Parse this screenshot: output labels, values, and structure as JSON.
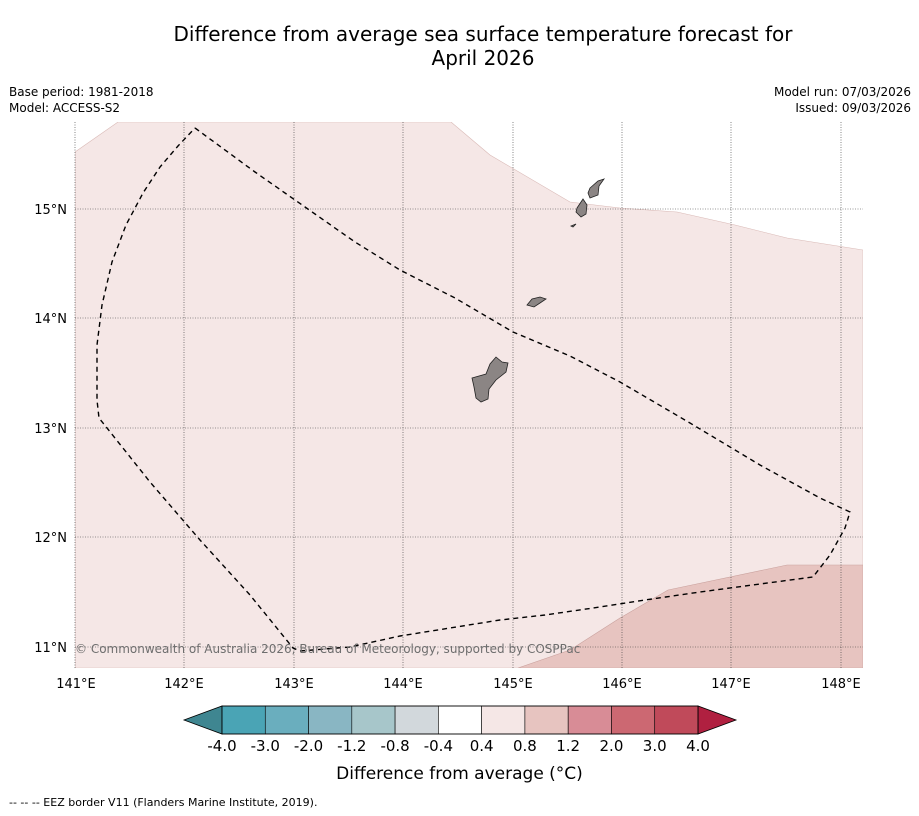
{
  "title": {
    "line1": "Difference from average sea surface temperature forecast for",
    "line2": "April 2026"
  },
  "meta": {
    "base_period": "Base period: 1981-2018",
    "model": "Model: ACCESS-S2",
    "model_run": "Model run: 07/03/2026",
    "issued": "Issued: 09/03/2026"
  },
  "map": {
    "lat_labels": [
      "15°N",
      "14°N",
      "13°N",
      "12°N",
      "11°N"
    ],
    "lon_labels": [
      "141°E",
      "142°E",
      "143°E",
      "144°E",
      "145°E",
      "146°E",
      "147°E",
      "148°E"
    ],
    "copyright": "© Commonwealth of Australia 2026, Bureau of Meteorology, supported by COSPPac"
  },
  "colorbar": {
    "ticks": [
      "-4.0",
      "-3.0",
      "-2.0",
      "-1.2",
      "-0.8",
      "-0.4",
      "0.4",
      "0.8",
      "1.2",
      "2.0",
      "3.0",
      "4.0"
    ],
    "colors": [
      "#4aa4b5",
      "#6aaebe",
      "#89b6c3",
      "#a7c6ca",
      "#d2d8dc",
      "#ffffff",
      "#f5e7e6",
      "#e7c4c0",
      "#d88c96",
      "#cc6872",
      "#c04a5a"
    ],
    "under_color": "#3f8691",
    "over_color": "#b02040",
    "label": "Difference from average (°C)"
  },
  "colors": {
    "anomaly_0_4_to_0_8": "#f5e7e6",
    "anomaly_0_8_to_1_2": "#e7c4c0",
    "land": "#8b8584"
  },
  "footnote": "--  --  -- EEZ border V11 (Flanders Marine Institute, 2019)."
}
